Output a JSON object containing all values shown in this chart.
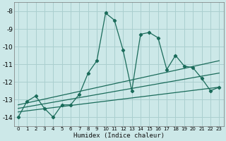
{
  "xlabel": "Humidex (Indice chaleur)",
  "bg_color": "#cce8e8",
  "grid_color": "#aacfcf",
  "line_color": "#1a6b5a",
  "xlim": [
    -0.5,
    23.5
  ],
  "ylim": [
    -14.5,
    -7.5
  ],
  "yticks": [
    -8,
    -9,
    -10,
    -11,
    -12,
    -13,
    -14
  ],
  "xticks": [
    0,
    1,
    2,
    3,
    4,
    5,
    6,
    7,
    8,
    9,
    10,
    11,
    12,
    13,
    14,
    15,
    16,
    17,
    18,
    19,
    20,
    21,
    22,
    23
  ],
  "main_line_x": [
    0,
    1,
    2,
    3,
    4,
    5,
    6,
    7,
    8,
    9,
    10,
    11,
    12,
    13,
    14,
    15,
    16,
    17,
    18,
    19,
    20,
    21,
    22,
    23
  ],
  "main_line_y": [
    -14.0,
    -13.1,
    -12.8,
    -13.5,
    -14.0,
    -13.3,
    -13.3,
    -12.7,
    -11.5,
    -10.8,
    -8.1,
    -8.5,
    -10.2,
    -12.5,
    -9.3,
    -9.2,
    -9.5,
    -11.3,
    -10.5,
    -11.1,
    -11.2,
    -11.8,
    -12.5,
    -12.3
  ],
  "upper_line_x": [
    0,
    23
  ],
  "upper_line_y": [
    -13.3,
    -10.8
  ],
  "mid_line_x": [
    0,
    23
  ],
  "mid_line_y": [
    -13.5,
    -11.5
  ],
  "lower_line_x": [
    0,
    23
  ],
  "lower_line_y": [
    -13.7,
    -12.3
  ]
}
